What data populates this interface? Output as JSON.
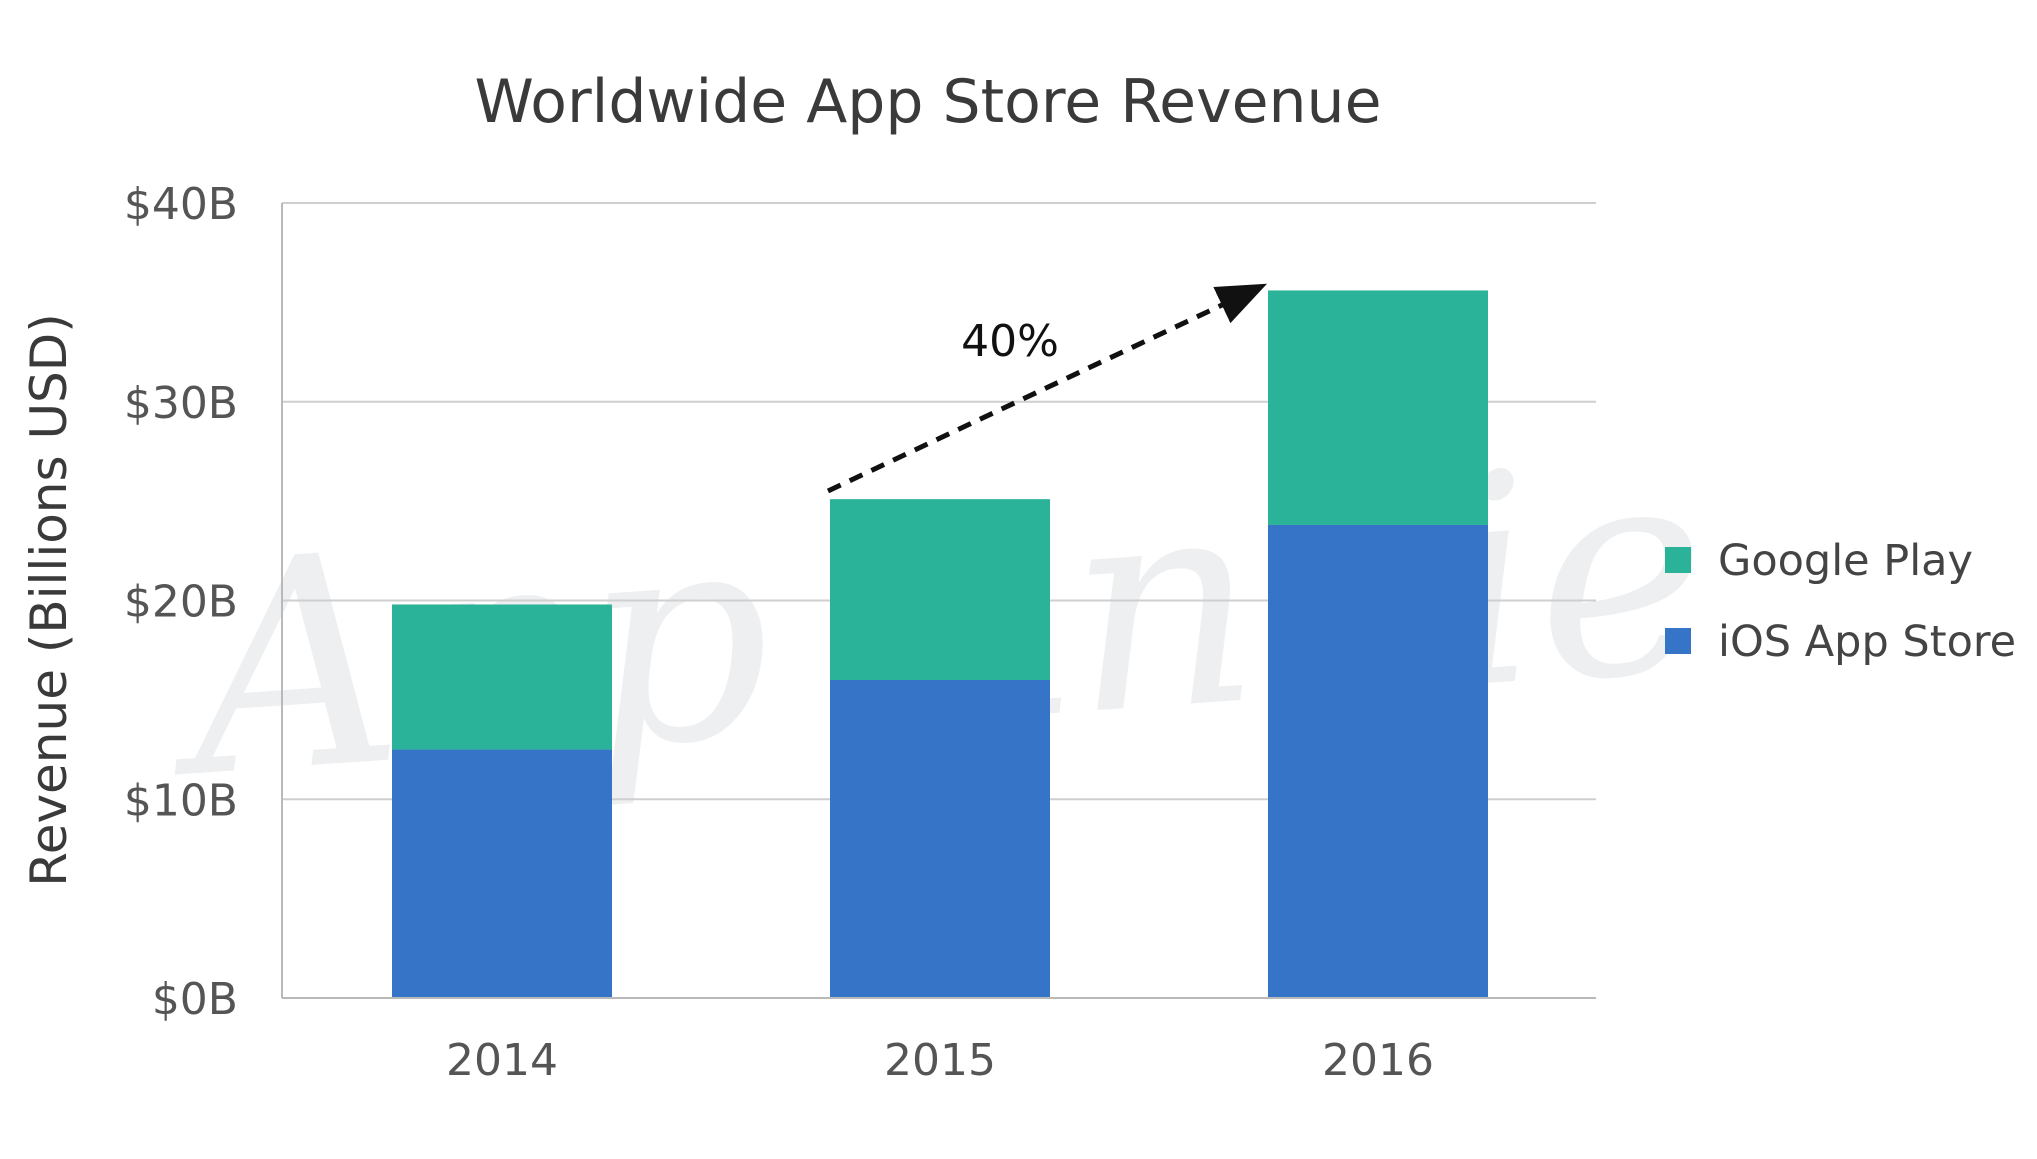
{
  "chart_data": {
    "type": "bar",
    "stacked": true,
    "title": "Worldwide App Store Revenue",
    "xlabel": "",
    "ylabel": "Revenue (Billions USD)",
    "categories": [
      "2014",
      "2015",
      "2016"
    ],
    "series": [
      {
        "name": "iOS App Store",
        "values": [
          12.5,
          16.0,
          23.8
        ],
        "color": "#3674c7"
      },
      {
        "name": "Google Play",
        "values": [
          7.3,
          9.1,
          11.8
        ],
        "color": "#2bb39a"
      }
    ],
    "ylim": [
      0,
      40
    ],
    "yticks": [
      0,
      10,
      20,
      30,
      40
    ],
    "ytick_labels": [
      "$0B",
      "$10B",
      "$20B",
      "$30B",
      "$40B"
    ],
    "grid": true,
    "legend_position": "right",
    "legend_order": [
      "Google Play",
      "iOS App Store"
    ],
    "annotation": {
      "text": "40%",
      "from_category": "2015",
      "to_category": "2016",
      "style": "dashed-arrow"
    },
    "watermark": "App Annie",
    "colors": {
      "grid": "#cfcfcf",
      "axis": "#b9b9b9",
      "arrow": "#111111"
    }
  }
}
